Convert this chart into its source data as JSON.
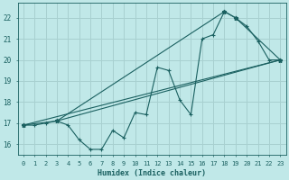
{
  "background_color": "#c0e8e8",
  "grid_color": "#a8d0d0",
  "line_color": "#1a6060",
  "xlabel": "Humidex (Indice chaleur)",
  "xlim": [
    -0.5,
    23.5
  ],
  "ylim": [
    15.5,
    22.7
  ],
  "yticks": [
    16,
    17,
    18,
    19,
    20,
    21,
    22
  ],
  "xticks": [
    0,
    1,
    2,
    3,
    4,
    5,
    6,
    7,
    8,
    9,
    10,
    11,
    12,
    13,
    14,
    15,
    16,
    17,
    18,
    19,
    20,
    21,
    22,
    23
  ],
  "line1_x": [
    0,
    1,
    2,
    3,
    4,
    5,
    6,
    7,
    8,
    9,
    10,
    11,
    12,
    13,
    14,
    15,
    16,
    17,
    18,
    19,
    20,
    21,
    22,
    23
  ],
  "line1_y": [
    16.9,
    16.9,
    17.0,
    17.1,
    16.9,
    16.2,
    15.75,
    15.75,
    16.65,
    16.3,
    17.5,
    17.4,
    19.65,
    19.5,
    18.1,
    17.4,
    21.0,
    21.2,
    22.3,
    22.0,
    21.6,
    20.9,
    20.0,
    20.0
  ],
  "line2_x": [
    0,
    3,
    18,
    19,
    23
  ],
  "line2_y": [
    16.9,
    17.1,
    22.3,
    22.0,
    20.0
  ],
  "line3_x": [
    0,
    23
  ],
  "line3_y": [
    16.9,
    20.0
  ],
  "line4_x": [
    3,
    23
  ],
  "line4_y": [
    17.1,
    20.0
  ]
}
